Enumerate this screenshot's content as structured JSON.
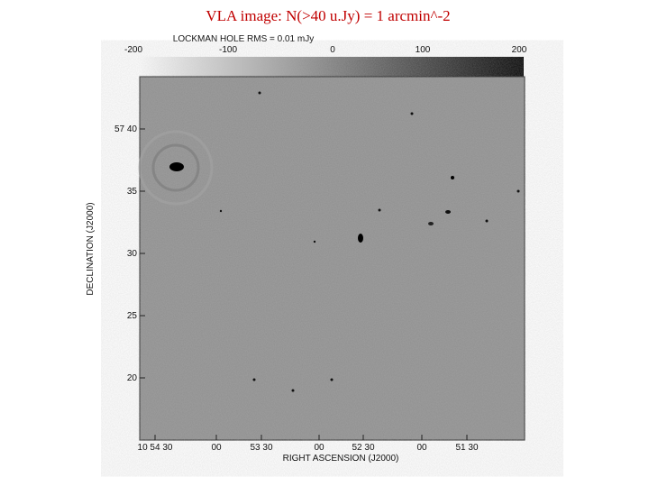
{
  "title": "VLA image: N(>40 u.Jy) = 1 arcmin^-2",
  "figure": {
    "caption": "LOCKMAN HOLE RMS = 0.01 mJy",
    "colorbar_ticks": [
      "-200",
      "-100",
      "0",
      "100",
      "200"
    ],
    "x_ticks": [
      "10 54 30",
      "00",
      "53 30",
      "00",
      "52 30",
      "00",
      "51 30"
    ],
    "y_ticks": [
      "57 40",
      "35",
      "30",
      "25",
      "20"
    ],
    "x_label": "RIGHT ASCENSION (J2000)",
    "y_label": "DECLINATION (J2000)"
  }
}
